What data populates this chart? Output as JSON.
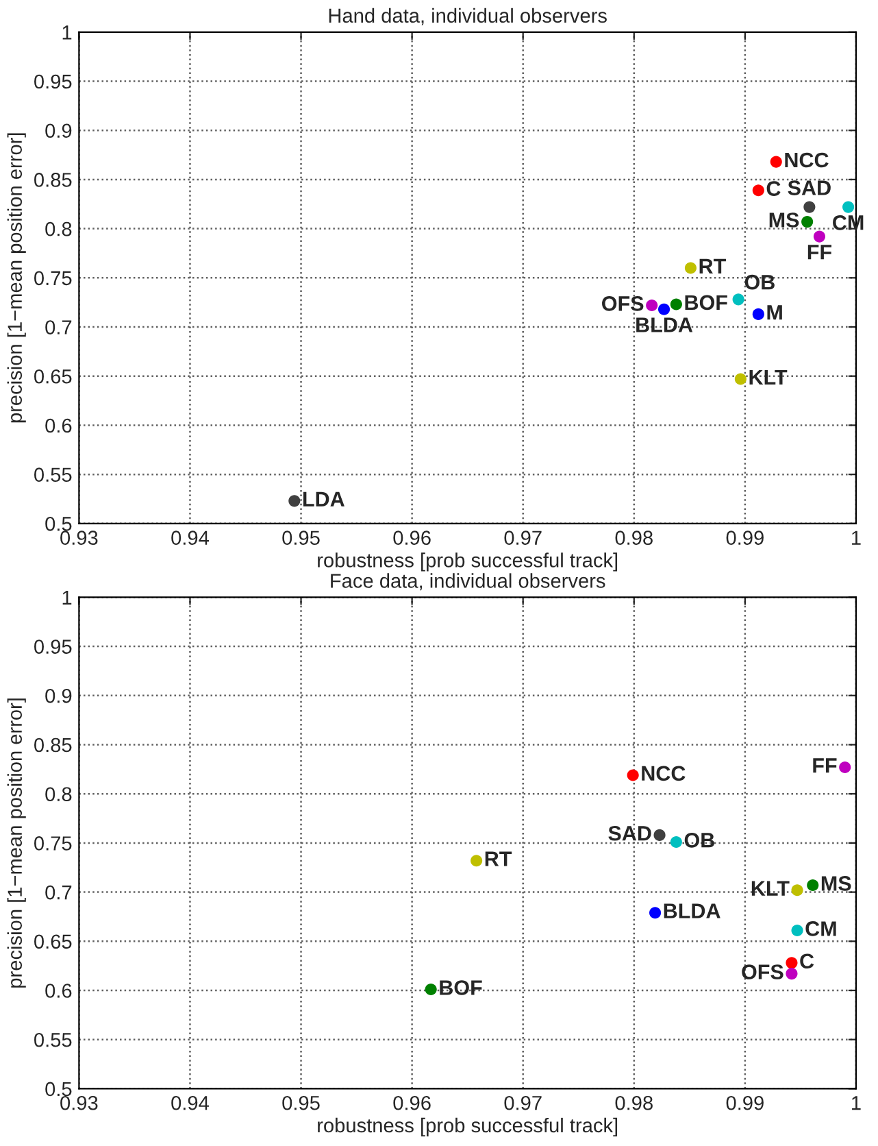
{
  "chart_data": [
    {
      "type": "scatter",
      "title": "Hand data, individual observers",
      "xlabel": "robustness [prob successful track]",
      "ylabel": "precision [1−mean position error]",
      "xlim": [
        0.93,
        1
      ],
      "ylim": [
        0.5,
        1
      ],
      "xticks": [
        0.93,
        0.94,
        0.95,
        0.96,
        0.97,
        0.98,
        0.99,
        1
      ],
      "yticks": [
        0.5,
        0.55,
        0.6,
        0.65,
        0.7,
        0.75,
        0.8,
        0.85,
        0.9,
        0.95,
        1
      ],
      "grid": true,
      "legend": false,
      "marker": "circle",
      "series": [
        {
          "name": "NCC",
          "color": "#ff0000",
          "x": [
            0.9928
          ],
          "values": [
            0.868
          ]
        },
        {
          "name": "C",
          "color": "#ff0000",
          "x": [
            0.9912
          ],
          "values": [
            0.839
          ]
        },
        {
          "name": "SAD",
          "color": "#404040",
          "x": [
            0.9958
          ],
          "values": [
            0.822
          ]
        },
        {
          "name": "CM",
          "color": "#00bfbf",
          "x": [
            0.9993
          ],
          "values": [
            0.822
          ]
        },
        {
          "name": "MS",
          "color": "#008000",
          "x": [
            0.9956
          ],
          "values": [
            0.807
          ]
        },
        {
          "name": "FF",
          "color": "#bf00bf",
          "x": [
            0.9967
          ],
          "values": [
            0.792
          ]
        },
        {
          "name": "RT",
          "color": "#bfbf00",
          "x": [
            0.9851
          ],
          "values": [
            0.76
          ]
        },
        {
          "name": "OFS",
          "color": "#bf00bf",
          "x": [
            0.9816
          ],
          "values": [
            0.722
          ]
        },
        {
          "name": "BLDA",
          "color": "#0000ff",
          "x": [
            0.9827
          ],
          "values": [
            0.718
          ]
        },
        {
          "name": "BOF",
          "color": "#008000",
          "x": [
            0.9838
          ],
          "values": [
            0.723
          ]
        },
        {
          "name": "OB",
          "color": "#00bfbf",
          "x": [
            0.9894
          ],
          "values": [
            0.728
          ]
        },
        {
          "name": "M",
          "color": "#0000ff",
          "x": [
            0.9912
          ],
          "values": [
            0.713
          ]
        },
        {
          "name": "KLT",
          "color": "#bfbf00",
          "x": [
            0.9896
          ],
          "values": [
            0.647
          ]
        },
        {
          "name": "LDA",
          "color": "#404040",
          "x": [
            0.9494
          ],
          "values": [
            0.523
          ]
        }
      ]
    },
    {
      "type": "scatter",
      "title": "Face data, individual observers",
      "xlabel": "robustness [prob successful track]",
      "ylabel": "precision [1−mean position error]",
      "xlim": [
        0.93,
        1
      ],
      "ylim": [
        0.5,
        1
      ],
      "xticks": [
        0.93,
        0.94,
        0.95,
        0.96,
        0.97,
        0.98,
        0.99,
        1
      ],
      "yticks": [
        0.5,
        0.55,
        0.6,
        0.65,
        0.7,
        0.75,
        0.8,
        0.85,
        0.9,
        0.95,
        1
      ],
      "grid": true,
      "legend": false,
      "marker": "circle",
      "series": [
        {
          "name": "FF",
          "color": "#bf00bf",
          "x": [
            0.999
          ],
          "values": [
            0.827
          ]
        },
        {
          "name": "NCC",
          "color": "#ff0000",
          "x": [
            0.9799
          ],
          "values": [
            0.819
          ]
        },
        {
          "name": "SAD",
          "color": "#404040",
          "x": [
            0.9823
          ],
          "values": [
            0.758
          ]
        },
        {
          "name": "OB",
          "color": "#00bfbf",
          "x": [
            0.9838
          ],
          "values": [
            0.751
          ]
        },
        {
          "name": "RT",
          "color": "#bfbf00",
          "x": [
            0.9658
          ],
          "values": [
            0.732
          ]
        },
        {
          "name": "MS",
          "color": "#008000",
          "x": [
            0.9961
          ],
          "values": [
            0.707
          ]
        },
        {
          "name": "KLT",
          "color": "#bfbf00",
          "x": [
            0.9947
          ],
          "values": [
            0.702
          ]
        },
        {
          "name": "BLDA",
          "color": "#0000ff",
          "x": [
            0.9819
          ],
          "values": [
            0.679
          ]
        },
        {
          "name": "CM",
          "color": "#00bfbf",
          "x": [
            0.9947
          ],
          "values": [
            0.661
          ]
        },
        {
          "name": "C",
          "color": "#ff0000",
          "x": [
            0.9942
          ],
          "values": [
            0.628
          ]
        },
        {
          "name": "OFS",
          "color": "#bf00bf",
          "x": [
            0.9942
          ],
          "values": [
            0.617
          ]
        },
        {
          "name": "BOF",
          "color": "#008000",
          "x": [
            0.9617
          ],
          "values": [
            0.601
          ]
        }
      ]
    }
  ]
}
